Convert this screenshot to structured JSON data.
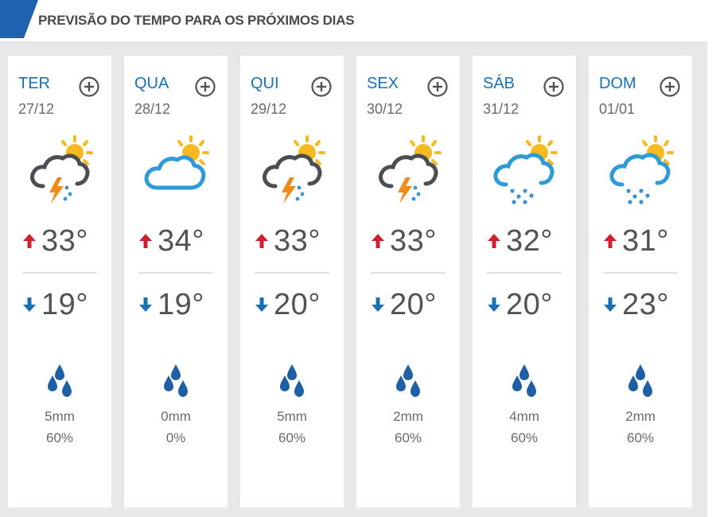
{
  "header": {
    "title": "PREVISÃO DO TEMPO PARA OS PRÓXIMOS DIAS",
    "accent_color": "#1f62ad"
  },
  "colors": {
    "day_name": "#1b6fb3",
    "max_arrow": "#d0202e",
    "min_arrow": "#1b6fb3",
    "cloud_outline_dark": "#4a4e52",
    "cloud_outline_blue": "#2f9ad8",
    "sun": "#f6b920",
    "rain_drop": "#1f5fa6"
  },
  "days": [
    {
      "name": "TER",
      "date": "27/12",
      "icon": "sun-storm-cloud-icon",
      "max": "33°",
      "min": "19°",
      "rain_mm": "5mm",
      "rain_prob": "60%"
    },
    {
      "name": "QUA",
      "date": "28/12",
      "icon": "sun-cloud-icon",
      "max": "34°",
      "min": "19°",
      "rain_mm": "0mm",
      "rain_prob": "0%"
    },
    {
      "name": "QUI",
      "date": "29/12",
      "icon": "sun-storm-cloud-icon",
      "max": "33°",
      "min": "20°",
      "rain_mm": "5mm",
      "rain_prob": "60%"
    },
    {
      "name": "SEX",
      "date": "30/12",
      "icon": "sun-storm-cloud-icon",
      "max": "33°",
      "min": "20°",
      "rain_mm": "2mm",
      "rain_prob": "60%"
    },
    {
      "name": "SÁB",
      "date": "31/12",
      "icon": "sun-rain-cloud-icon",
      "max": "32°",
      "min": "20°",
      "rain_mm": "4mm",
      "rain_prob": "60%"
    },
    {
      "name": "DOM",
      "date": "01/01",
      "icon": "sun-rain-cloud-icon",
      "max": "31°",
      "min": "23°",
      "rain_mm": "2mm",
      "rain_prob": "60%"
    }
  ]
}
